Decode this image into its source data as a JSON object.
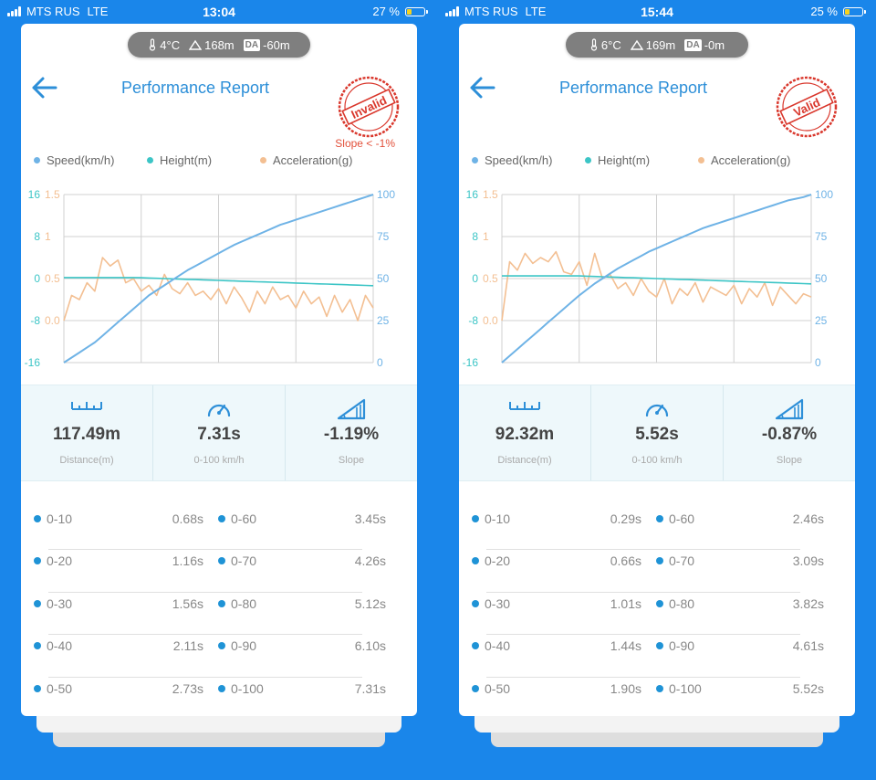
{
  "colors": {
    "speed": "#6fb3e6",
    "height": "#3cc5c6",
    "accel": "#f3bf92",
    "accent": "#2d8fd8",
    "stamp": "#d9372c",
    "background": "#1a86ea"
  },
  "screens": [
    {
      "status": {
        "carrier": "MTS RUS",
        "network": "LTE",
        "time": "13:04",
        "battery": "27 %",
        "battery_level": 0.27
      },
      "weather": {
        "temperature": "4°C",
        "altitude": "168m",
        "da_label": "DA",
        "density_altitude": "-60m"
      },
      "title": "Performance Report",
      "stamp": {
        "text": "Invalid",
        "note": "Slope < -1%"
      },
      "legend": {
        "speed": "Speed(km/h)",
        "height": "Height(m)",
        "accel": "Acceleration(g)"
      },
      "chart_data": {
        "type": "line",
        "x": [
          0,
          1,
          2,
          3,
          4,
          5,
          6,
          7,
          8,
          9,
          10,
          11,
          12,
          13,
          14,
          15,
          16,
          17,
          18,
          19,
          20,
          21,
          22,
          23,
          24,
          25,
          26,
          27,
          28,
          29,
          30,
          31,
          32,
          33,
          34,
          35,
          36,
          37,
          38,
          39,
          40
        ],
        "y_left_height": {
          "ticks": [
            "16",
            "8",
            "0",
            "-8",
            "-16"
          ],
          "ylim": [
            -16,
            16
          ]
        },
        "y_left_accel": {
          "ticks": [
            "1.5",
            "1",
            "0.5",
            "0.0"
          ],
          "ylim": [
            -0.5,
            1.5
          ]
        },
        "y_right_speed": {
          "ticks": [
            "100",
            "75",
            "50",
            "25",
            "0"
          ],
          "ylim": [
            0,
            100
          ]
        },
        "grid": true,
        "series": [
          {
            "name": "Speed(km/h)",
            "axis": "right",
            "values": [
              0,
              3,
              6,
              9,
              12,
              16,
              20,
              24,
              28,
              32,
              36,
              40,
              43,
              46,
              49,
              52,
              55,
              57.5,
              60,
              62.5,
              65,
              67.5,
              70,
              72,
              74,
              76,
              78,
              80,
              82,
              83.5,
              85,
              86.5,
              88,
              89.5,
              91,
              92.5,
              94,
              95.5,
              97,
              98.5,
              100
            ]
          },
          {
            "name": "Height(m)",
            "axis": "left_height",
            "values": [
              0.2,
              0.2,
              0.2,
              0.2,
              0.2,
              0.2,
              0.2,
              0.2,
              0.2,
              0.2,
              0.15,
              0.1,
              0.05,
              0,
              -0.05,
              -0.1,
              -0.15,
              -0.2,
              -0.25,
              -0.3,
              -0.35,
              -0.4,
              -0.45,
              -0.5,
              -0.55,
              -0.6,
              -0.65,
              -0.7,
              -0.75,
              -0.8,
              -0.85,
              -0.9,
              -0.95,
              -1.0,
              -1.05,
              -1.1,
              -1.15,
              -1.2,
              -1.25,
              -1.3,
              -1.35
            ]
          },
          {
            "name": "Acceleration(g)",
            "axis": "left_accel",
            "values": [
              0.0,
              0.3,
              0.25,
              0.45,
              0.35,
              0.75,
              0.65,
              0.72,
              0.45,
              0.5,
              0.35,
              0.42,
              0.3,
              0.55,
              0.38,
              0.32,
              0.45,
              0.3,
              0.35,
              0.25,
              0.38,
              0.2,
              0.4,
              0.27,
              0.1,
              0.35,
              0.2,
              0.4,
              0.25,
              0.3,
              0.15,
              0.35,
              0.2,
              0.28,
              0.05,
              0.3,
              0.1,
              0.25,
              0.0,
              0.3,
              0.15
            ]
          }
        ]
      },
      "stats": [
        {
          "value": "117.49m",
          "label": "Distance(m)",
          "icon": "ruler-icon"
        },
        {
          "value": "7.31s",
          "label": "0-100 km/h",
          "icon": "speedometer-icon"
        },
        {
          "value": "-1.19%",
          "label": "Slope",
          "icon": "slope-icon"
        }
      ],
      "splits": [
        {
          "l1": "0-10",
          "v1": "0.68s",
          "l2": "0-60",
          "v2": "3.45s"
        },
        {
          "l1": "0-20",
          "v1": "1.16s",
          "l2": "0-70",
          "v2": "4.26s"
        },
        {
          "l1": "0-30",
          "v1": "1.56s",
          "l2": "0-80",
          "v2": "5.12s"
        },
        {
          "l1": "0-40",
          "v1": "2.11s",
          "l2": "0-90",
          "v2": "6.10s"
        },
        {
          "l1": "0-50",
          "v1": "2.73s",
          "l2": "0-100",
          "v2": "7.31s"
        }
      ]
    },
    {
      "status": {
        "carrier": "MTS RUS",
        "network": "LTE",
        "time": "15:44",
        "battery": "25 %",
        "battery_level": 0.25
      },
      "weather": {
        "temperature": "6°C",
        "altitude": "169m",
        "da_label": "DA",
        "density_altitude": "-0m"
      },
      "title": "Performance Report",
      "stamp": {
        "text": "Valid",
        "note": ""
      },
      "legend": {
        "speed": "Speed(km/h)",
        "height": "Height(m)",
        "accel": "Acceleration(g)"
      },
      "chart_data": {
        "type": "line",
        "x": [
          0,
          1,
          2,
          3,
          4,
          5,
          6,
          7,
          8,
          9,
          10,
          11,
          12,
          13,
          14,
          15,
          16,
          17,
          18,
          19,
          20,
          21,
          22,
          23,
          24,
          25,
          26,
          27,
          28,
          29,
          30,
          31,
          32,
          33,
          34,
          35,
          36,
          37,
          38,
          39,
          40
        ],
        "y_left_height": {
          "ticks": [
            "16",
            "8",
            "0",
            "-8",
            "-16"
          ],
          "ylim": [
            -16,
            16
          ]
        },
        "y_left_accel": {
          "ticks": [
            "1.5",
            "1",
            "0.5",
            "0.0"
          ],
          "ylim": [
            -0.5,
            1.5
          ]
        },
        "y_right_speed": {
          "ticks": [
            "100",
            "75",
            "50",
            "25",
            "0"
          ],
          "ylim": [
            0,
            100
          ]
        },
        "grid": true,
        "series": [
          {
            "name": "Speed(km/h)",
            "axis": "right",
            "values": [
              0,
              4,
              8,
              12,
              16,
              20,
              24,
              28,
              32,
              36,
              40,
              43.5,
              47,
              50,
              53,
              56,
              58.5,
              61,
              63.5,
              66,
              68,
              70,
              72,
              74,
              76,
              78,
              80,
              81.5,
              83,
              84.5,
              86,
              87.5,
              89,
              90.5,
              92,
              93.5,
              95,
              96.5,
              97.5,
              98.5,
              100
            ]
          },
          {
            "name": "Height(m)",
            "axis": "left_height",
            "values": [
              0.5,
              0.5,
              0.5,
              0.5,
              0.5,
              0.5,
              0.5,
              0.5,
              0.5,
              0.5,
              0.5,
              0.45,
              0.4,
              0.35,
              0.3,
              0.25,
              0.2,
              0.15,
              0.1,
              0.05,
              0,
              -0.05,
              -0.1,
              -0.15,
              -0.2,
              -0.25,
              -0.3,
              -0.35,
              -0.4,
              -0.45,
              -0.5,
              -0.55,
              -0.6,
              -0.65,
              -0.7,
              -0.75,
              -0.8,
              -0.85,
              -0.9,
              -0.95,
              -1.0
            ]
          },
          {
            "name": "Acceleration(g)",
            "axis": "left_accel",
            "values": [
              0.0,
              0.7,
              0.6,
              0.8,
              0.68,
              0.75,
              0.7,
              0.82,
              0.58,
              0.55,
              0.7,
              0.42,
              0.8,
              0.5,
              0.55,
              0.38,
              0.45,
              0.3,
              0.5,
              0.35,
              0.28,
              0.5,
              0.2,
              0.38,
              0.3,
              0.45,
              0.22,
              0.4,
              0.35,
              0.3,
              0.42,
              0.2,
              0.38,
              0.28,
              0.45,
              0.18,
              0.4,
              0.3,
              0.2,
              0.32,
              0.28
            ]
          }
        ]
      },
      "stats": [
        {
          "value": "92.32m",
          "label": "Distance(m)",
          "icon": "ruler-icon"
        },
        {
          "value": "5.52s",
          "label": "0-100 km/h",
          "icon": "speedometer-icon"
        },
        {
          "value": "-0.87%",
          "label": "Slope",
          "icon": "slope-icon"
        }
      ],
      "splits": [
        {
          "l1": "0-10",
          "v1": "0.29s",
          "l2": "0-60",
          "v2": "2.46s"
        },
        {
          "l1": "0-20",
          "v1": "0.66s",
          "l2": "0-70",
          "v2": "3.09s"
        },
        {
          "l1": "0-30",
          "v1": "1.01s",
          "l2": "0-80",
          "v2": "3.82s"
        },
        {
          "l1": "0-40",
          "v1": "1.44s",
          "l2": "0-90",
          "v2": "4.61s"
        },
        {
          "l1": "0-50",
          "v1": "1.90s",
          "l2": "0-100",
          "v2": "5.52s"
        }
      ]
    }
  ]
}
